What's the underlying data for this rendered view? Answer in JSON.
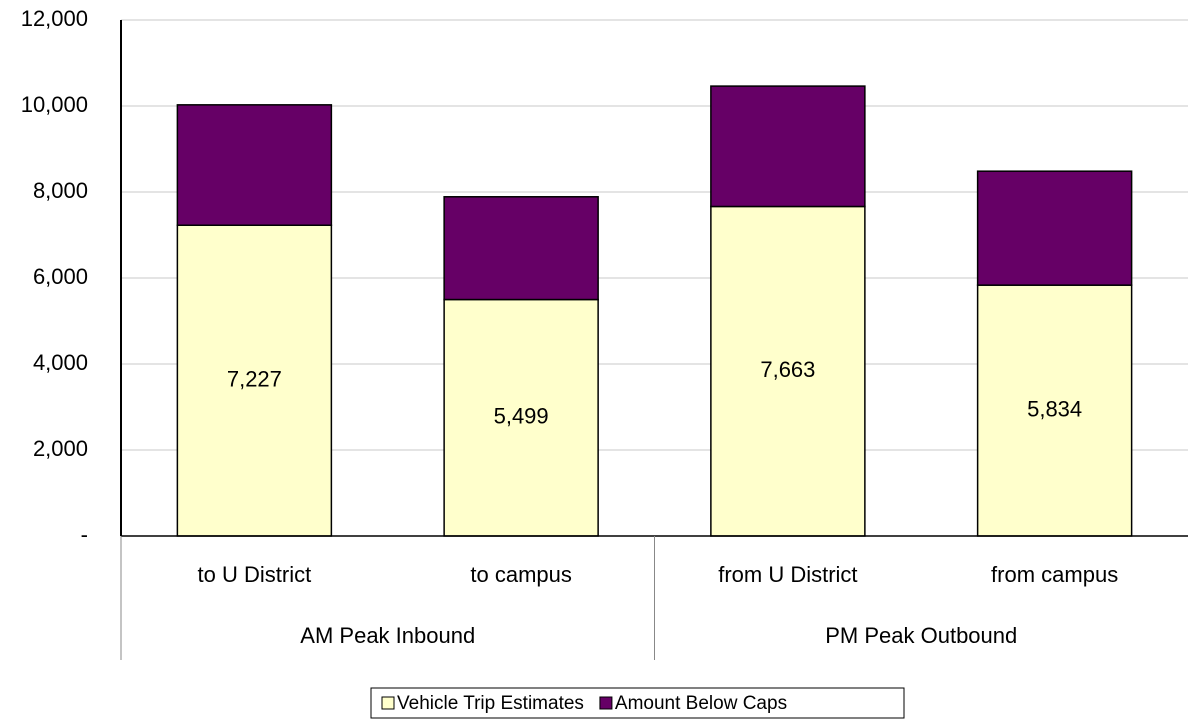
{
  "chart_data": {
    "type": "stacked-bar",
    "categories": [
      "to U District",
      "to campus",
      "from U District",
      "from campus"
    ],
    "groups": [
      "AM Peak Inbound",
      "PM Peak Outbound"
    ],
    "series": [
      {
        "name": "Vehicle Trip Estimates",
        "color": "#FFFFCC",
        "values": [
          7227,
          5499,
          7663,
          5834
        ],
        "value_labels": [
          "7,227",
          "5,499",
          "7,663",
          "5,834"
        ]
      },
      {
        "name": "Amount Below Caps",
        "color": "#660066",
        "values": [
          2800,
          2390,
          2800,
          2650
        ]
      }
    ],
    "ylim": [
      0,
      12000
    ],
    "yticks": [
      {
        "value": 0,
        "label": "-"
      },
      {
        "value": 2000,
        "label": "2,000"
      },
      {
        "value": 4000,
        "label": "4,000"
      },
      {
        "value": 6000,
        "label": "6,000"
      },
      {
        "value": 8000,
        "label": "8,000"
      },
      {
        "value": 10000,
        "label": "10,000"
      },
      {
        "value": 12000,
        "label": "12,000"
      }
    ],
    "grid": true,
    "legend": "bottom"
  }
}
